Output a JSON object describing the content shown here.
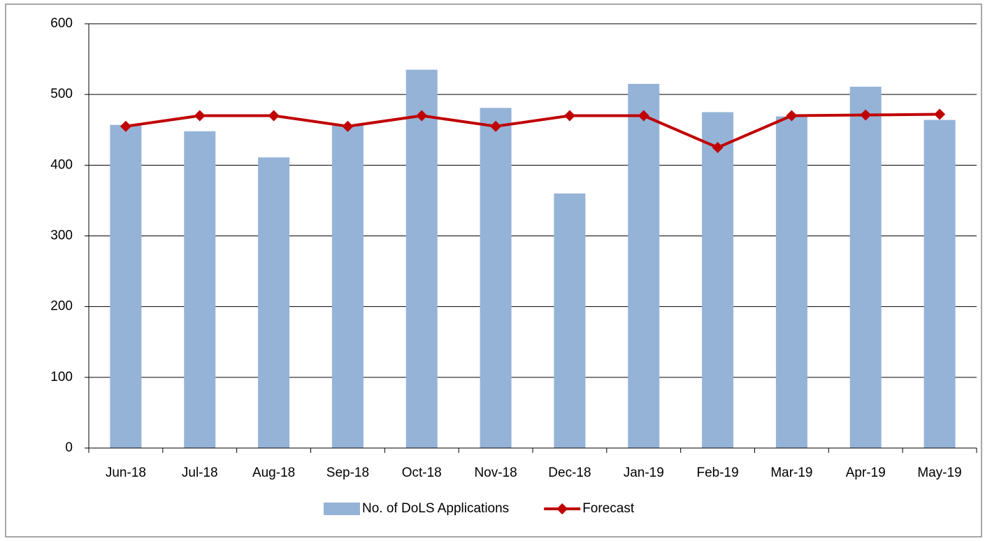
{
  "chart_data": {
    "type": "combo",
    "categories": [
      "Jun-18",
      "Jul-18",
      "Aug-18",
      "Sep-18",
      "Oct-18",
      "Nov-18",
      "Dec-18",
      "Jan-19",
      "Feb-19",
      "Mar-19",
      "Apr-19",
      "May-19"
    ],
    "series": [
      {
        "name": "No. of DoLS Applications",
        "type": "bar",
        "color": "#95b3d7",
        "values": [
          457,
          448,
          411,
          457,
          535,
          481,
          360,
          515,
          475,
          469,
          511,
          464
        ]
      },
      {
        "name": "Forecast",
        "type": "line",
        "color": "#c00000",
        "values": [
          455,
          470,
          470,
          455,
          470,
          455,
          470,
          470,
          425,
          470,
          471,
          472
        ]
      }
    ],
    "ylim": [
      0,
      600
    ],
    "yticks": [
      0,
      100,
      200,
      300,
      400,
      500,
      600
    ],
    "grid": true,
    "legend": "bottom"
  }
}
